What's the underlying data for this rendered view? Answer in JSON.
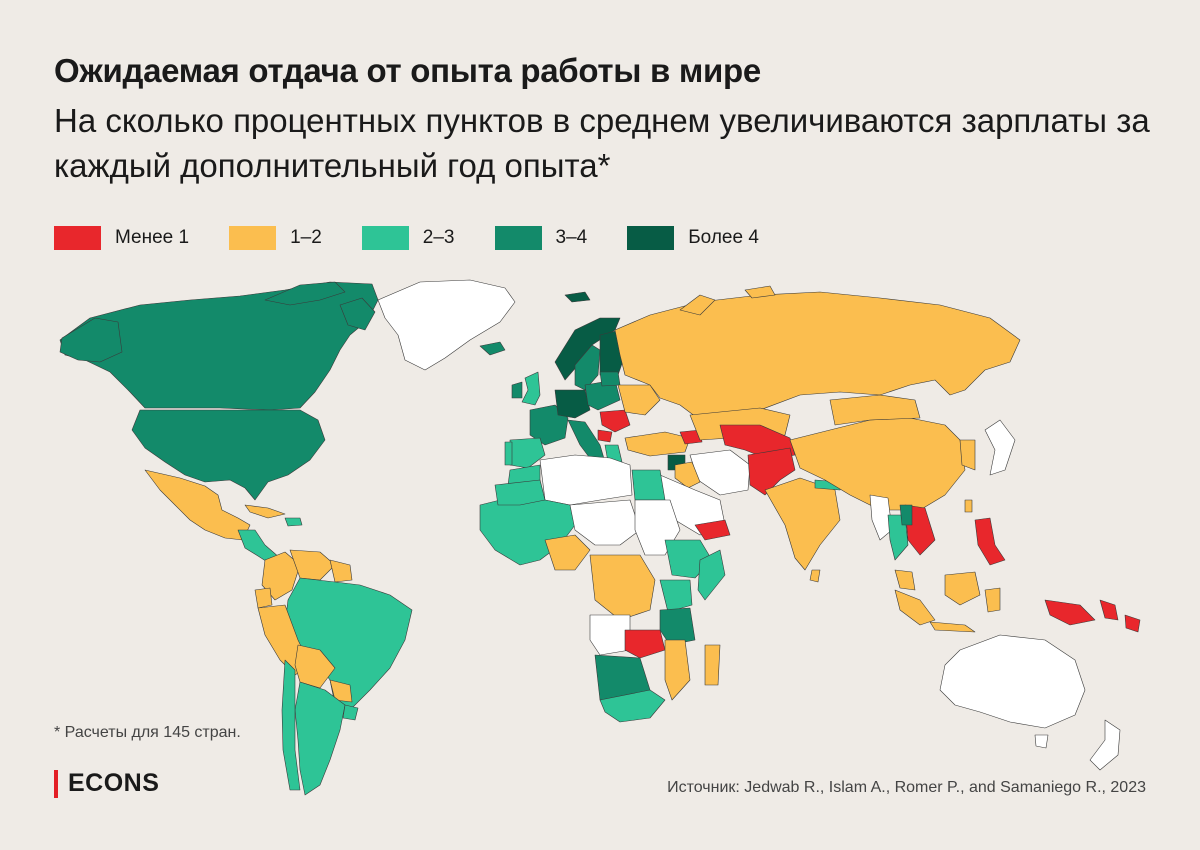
{
  "header": {
    "title": "Ожидаемая отдача от опыта работы в мире",
    "subtitle": "На сколько процентных пунктов в среднем увеличиваются зарплаты за каждый дополнительный год опыта*"
  },
  "legend": [
    {
      "label": "Менее 1",
      "color": "#e8272c"
    },
    {
      "label": "1–2",
      "color": "#fbbe4f"
    },
    {
      "label": "2–3",
      "color": "#2ec496"
    },
    {
      "label": "3–4",
      "color": "#138a6a"
    },
    {
      "label": "Более 4",
      "color": "#075c45"
    }
  ],
  "map_colors": {
    "ocean": "#efebe6",
    "no_data": "#ffffff",
    "border": "#3a3a3a"
  },
  "footnote": "* Расчеты для 145 стран.",
  "brand": "ECONS",
  "source": "Источник: Jedwab R., Islam A., Romer P., and Samaniego R., 2023"
}
